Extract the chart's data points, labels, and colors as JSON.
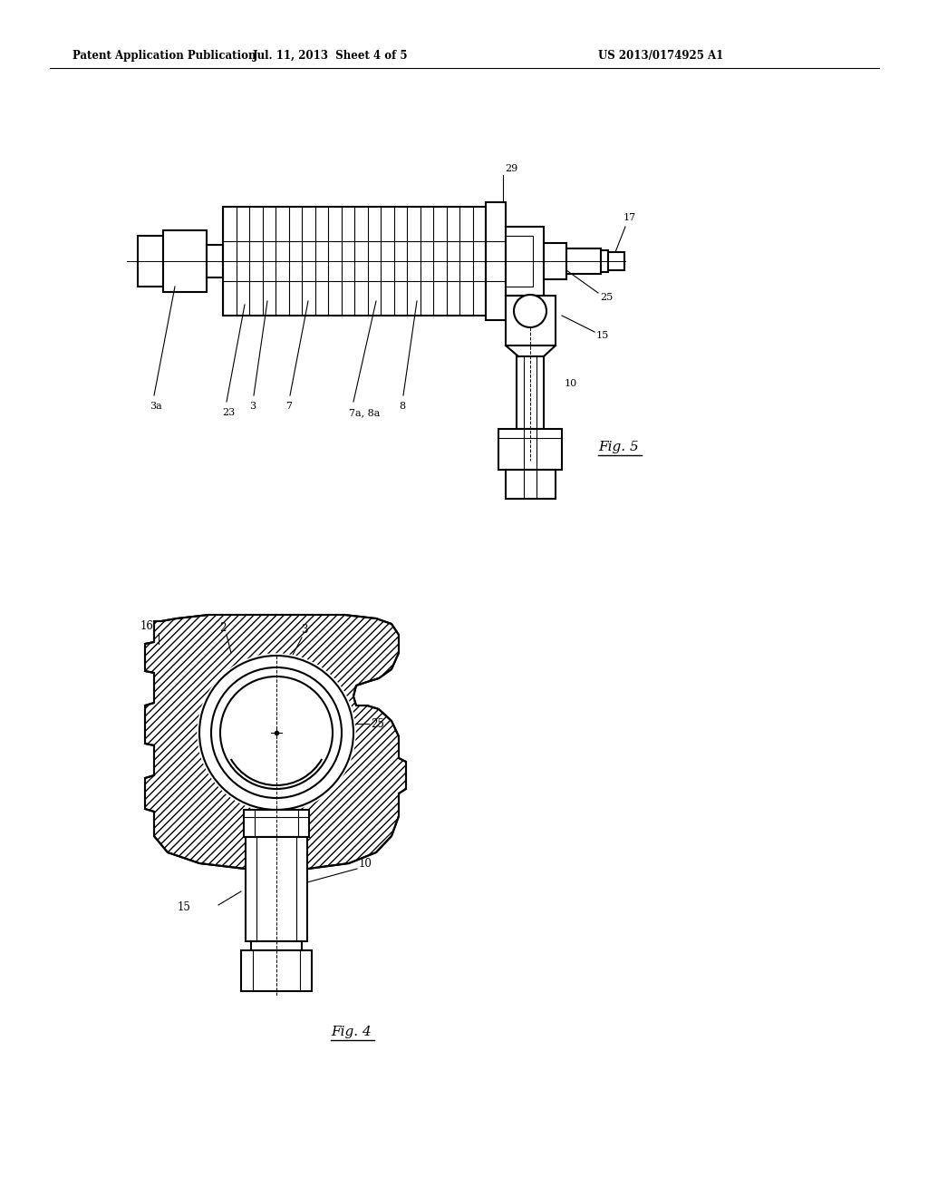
{
  "background_color": "#ffffff",
  "header_left": "Patent Application Publication",
  "header_center": "Jul. 11, 2013  Sheet 4 of 5",
  "header_right": "US 2013/0174925 A1",
  "fig5_label": "Fig. 5",
  "fig4_label": "Fig. 4",
  "line_color": "#000000"
}
